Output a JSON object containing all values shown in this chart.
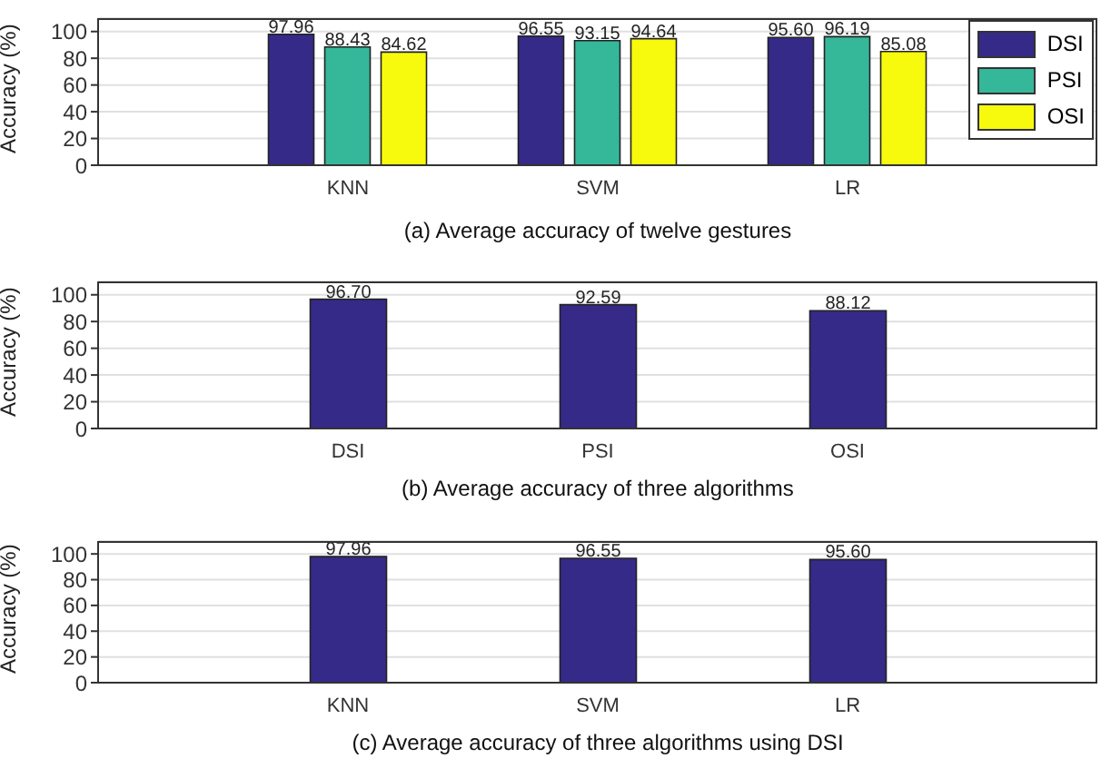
{
  "chart_data": [
    {
      "type": "bar",
      "title": "(a) Average accuracy of twelve gestures",
      "ylabel": "Accuracy (%)",
      "categories": [
        "KNN",
        "SVM",
        "LR"
      ],
      "series": [
        {
          "name": "DSI",
          "color": "#352a87",
          "values": [
            97.96,
            96.55,
            95.6
          ],
          "value_labels": [
            "97.96",
            "96.55",
            "95.60"
          ]
        },
        {
          "name": "PSI",
          "color": "#35b79a",
          "values": [
            88.43,
            93.15,
            96.19
          ],
          "value_labels": [
            "88.43",
            "93.15",
            "96.19"
          ]
        },
        {
          "name": "OSI",
          "color": "#f8fa0d",
          "values": [
            84.62,
            94.64,
            85.08
          ],
          "value_labels": [
            "84.62",
            "94.64",
            "85.08"
          ]
        }
      ],
      "ylim": [
        0,
        110
      ],
      "yticks": [
        0,
        20,
        40,
        60,
        80,
        100
      ],
      "grid": "y",
      "legend": "top right"
    },
    {
      "type": "bar",
      "title": "(b) Average accuracy of three algorithms",
      "ylabel": "Accuracy (%)",
      "categories": [
        "DSI",
        "PSI",
        "OSI"
      ],
      "series": [
        {
          "color": "#352a87",
          "values": [
            96.7,
            92.59,
            88.12
          ],
          "value_labels": [
            "96.70",
            "92.59",
            "88.12"
          ]
        }
      ],
      "ylim": [
        0,
        110
      ],
      "yticks": [
        0,
        20,
        40,
        60,
        80,
        100
      ],
      "grid": "y"
    },
    {
      "type": "bar",
      "title": "(c) Average accuracy of three algorithms using DSI",
      "ylabel": "Accuracy (%)",
      "categories": [
        "KNN",
        "SVM",
        "LR"
      ],
      "series": [
        {
          "color": "#352a87",
          "values": [
            97.96,
            96.55,
            95.6
          ],
          "value_labels": [
            "97.96",
            "96.55",
            "95.60"
          ]
        }
      ],
      "ylim": [
        0,
        110
      ],
      "yticks": [
        0,
        20,
        40,
        60,
        80,
        100
      ],
      "grid": "y"
    }
  ]
}
